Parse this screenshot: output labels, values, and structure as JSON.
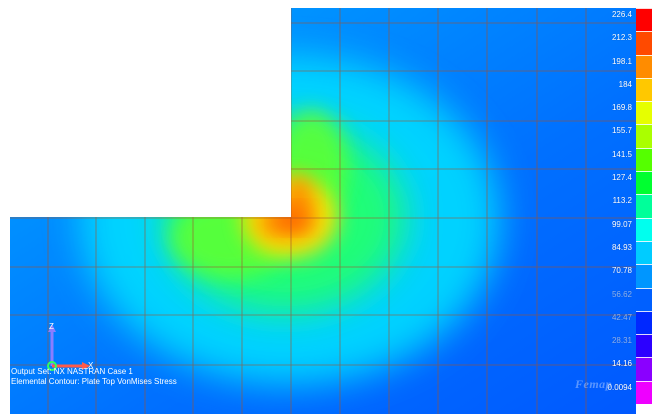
{
  "colors": {
    "background": "#ffffff",
    "grid_line": "#a0522d",
    "annotation_text": "#ffffff"
  },
  "legend": {
    "labels": [
      "226.4",
      "212.3",
      "198.1",
      "184",
      "169.8",
      "155.7",
      "141.5",
      "127.4",
      "113.2",
      "99.07",
      "84.93",
      "70.78",
      "56.62",
      "42.47",
      "28.31",
      "14.16",
      "0.0094"
    ],
    "colors": [
      "#ff0000",
      "#ff4a00",
      "#ff8c00",
      "#ffc800",
      "#e6ff00",
      "#aaff00",
      "#55ff00",
      "#00ff30",
      "#00ff9a",
      "#00ffee",
      "#00ccff",
      "#0096ff",
      "#0060ff",
      "#0028ff",
      "#2c00ff",
      "#8a00ff",
      "#ee00ff"
    ]
  },
  "triad": {
    "z_label": "Z",
    "x_label": "X"
  },
  "info": {
    "output_set": "Output Set: NX NASTRAN Case 1",
    "contour": "Elemental Contour: Plate Top VonMises Stress"
  },
  "logo_text": "Femap"
}
